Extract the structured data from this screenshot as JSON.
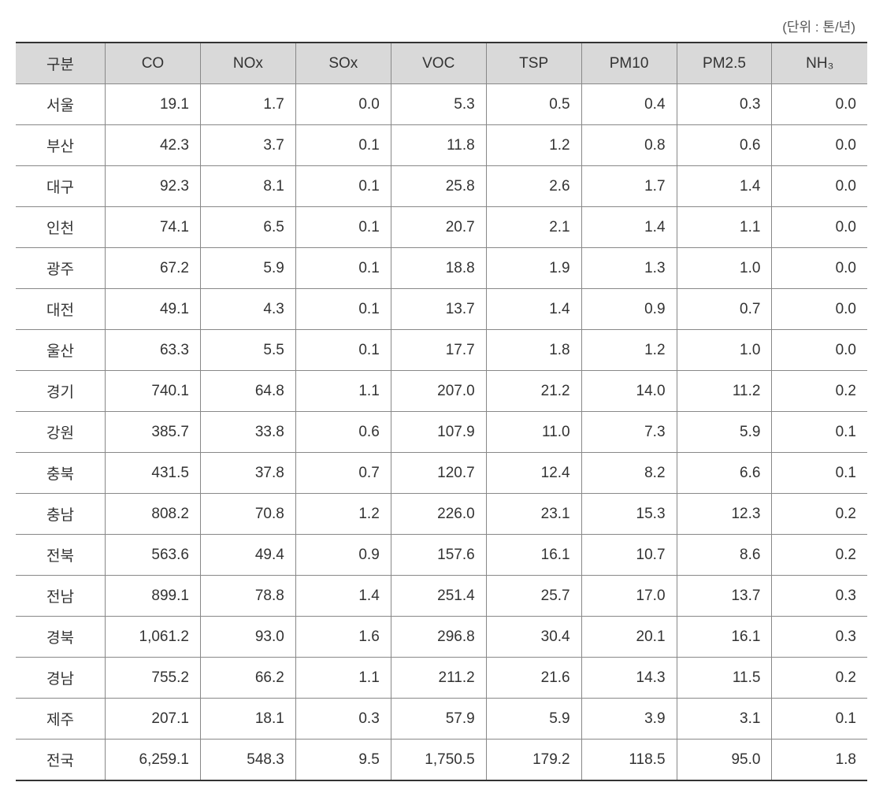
{
  "unit_label": "(단위 : 톤/년)",
  "table": {
    "columns": [
      "구분",
      "CO",
      "NOx",
      "SOx",
      "VOC",
      "TSP",
      "PM10",
      "PM2.5",
      "NH₃"
    ],
    "rows": [
      {
        "region": "서울",
        "values": [
          "19.1",
          "1.7",
          "0.0",
          "5.3",
          "0.5",
          "0.4",
          "0.3",
          "0.0"
        ]
      },
      {
        "region": "부산",
        "values": [
          "42.3",
          "3.7",
          "0.1",
          "11.8",
          "1.2",
          "0.8",
          "0.6",
          "0.0"
        ]
      },
      {
        "region": "대구",
        "values": [
          "92.3",
          "8.1",
          "0.1",
          "25.8",
          "2.6",
          "1.7",
          "1.4",
          "0.0"
        ]
      },
      {
        "region": "인천",
        "values": [
          "74.1",
          "6.5",
          "0.1",
          "20.7",
          "2.1",
          "1.4",
          "1.1",
          "0.0"
        ]
      },
      {
        "region": "광주",
        "values": [
          "67.2",
          "5.9",
          "0.1",
          "18.8",
          "1.9",
          "1.3",
          "1.0",
          "0.0"
        ]
      },
      {
        "region": "대전",
        "values": [
          "49.1",
          "4.3",
          "0.1",
          "13.7",
          "1.4",
          "0.9",
          "0.7",
          "0.0"
        ]
      },
      {
        "region": "울산",
        "values": [
          "63.3",
          "5.5",
          "0.1",
          "17.7",
          "1.8",
          "1.2",
          "1.0",
          "0.0"
        ]
      },
      {
        "region": "경기",
        "values": [
          "740.1",
          "64.8",
          "1.1",
          "207.0",
          "21.2",
          "14.0",
          "11.2",
          "0.2"
        ]
      },
      {
        "region": "강원",
        "values": [
          "385.7",
          "33.8",
          "0.6",
          "107.9",
          "11.0",
          "7.3",
          "5.9",
          "0.1"
        ]
      },
      {
        "region": "충북",
        "values": [
          "431.5",
          "37.8",
          "0.7",
          "120.7",
          "12.4",
          "8.2",
          "6.6",
          "0.1"
        ]
      },
      {
        "region": "충남",
        "values": [
          "808.2",
          "70.8",
          "1.2",
          "226.0",
          "23.1",
          "15.3",
          "12.3",
          "0.2"
        ]
      },
      {
        "region": "전북",
        "values": [
          "563.6",
          "49.4",
          "0.9",
          "157.6",
          "16.1",
          "10.7",
          "8.6",
          "0.2"
        ]
      },
      {
        "region": "전남",
        "values": [
          "899.1",
          "78.8",
          "1.4",
          "251.4",
          "25.7",
          "17.0",
          "13.7",
          "0.3"
        ]
      },
      {
        "region": "경북",
        "values": [
          "1,061.2",
          "93.0",
          "1.6",
          "296.8",
          "30.4",
          "20.1",
          "16.1",
          "0.3"
        ]
      },
      {
        "region": "경남",
        "values": [
          "755.2",
          "66.2",
          "1.1",
          "211.2",
          "21.6",
          "14.3",
          "11.5",
          "0.2"
        ]
      },
      {
        "region": "제주",
        "values": [
          "207.1",
          "18.1",
          "0.3",
          "57.9",
          "5.9",
          "3.9",
          "3.1",
          "0.1"
        ]
      },
      {
        "region": "전국",
        "values": [
          "6,259.1",
          "548.3",
          "9.5",
          "1,750.5",
          "179.2",
          "118.5",
          "95.0",
          "1.8"
        ]
      }
    ]
  },
  "styling": {
    "header_bg": "#d9d9d9",
    "border_color": "#888888",
    "outer_border_color": "#333333",
    "text_color": "#333333",
    "font_size_cell": 19,
    "font_size_unit": 17,
    "background_color": "#ffffff"
  }
}
